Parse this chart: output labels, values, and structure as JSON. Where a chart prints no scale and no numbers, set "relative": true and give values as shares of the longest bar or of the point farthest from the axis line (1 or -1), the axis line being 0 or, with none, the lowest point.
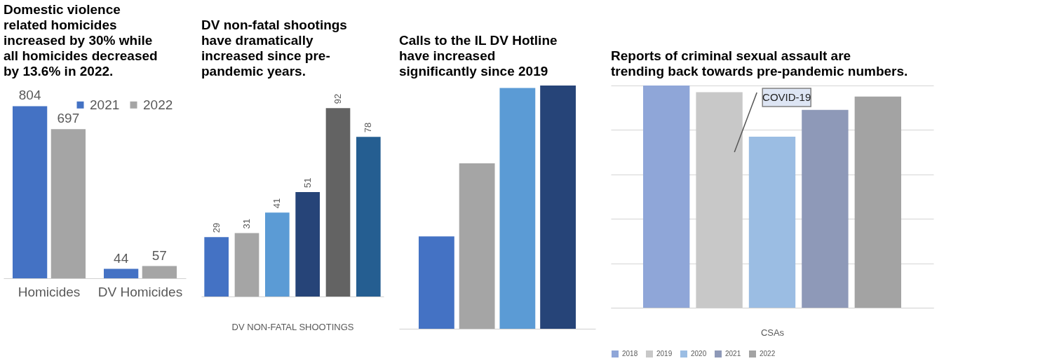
{
  "chart_data": [
    {
      "type": "bar",
      "title": "Domestic violence related homicides increased by 30% while all homicides decreased by 13.6% in 2022.",
      "categories": [
        "Homicides",
        "DV Homicides"
      ],
      "legend": "top right",
      "data_labels": true,
      "series": [
        {
          "name": "2021",
          "color": "#4472c4",
          "values": [
            804,
            44
          ]
        },
        {
          "name": "2022",
          "color": "#a5a5a5",
          "values": [
            697,
            57
          ]
        }
      ]
    },
    {
      "type": "bar",
      "title": "DV non-fatal shootings have dramatically increased since pre-pandemic years.",
      "xlabel": "DV NON-FATAL SHOOTINGS",
      "categories": [
        null,
        null,
        null,
        null,
        null,
        null
      ],
      "data_labels": true,
      "values": [
        29,
        31,
        41,
        51,
        92,
        78
      ],
      "colors": [
        "#4472c4",
        "#a5a5a5",
        "#5b9bd5",
        "#264478",
        "#636363",
        "#255e91"
      ]
    },
    {
      "type": "bar",
      "title": "Calls to the IL DV Hotline have increased significantly since 2019",
      "categories": [
        null
      ],
      "relative": true,
      "series": [
        {
          "color": "#4472c4",
          "values": [
            0.38
          ]
        },
        {
          "color": "#a5a5a5",
          "values": [
            0.68
          ]
        },
        {
          "color": "#5b9bd5",
          "values": [
            0.99
          ]
        },
        {
          "color": "#264478",
          "values": [
            1
          ]
        }
      ]
    },
    {
      "type": "bar",
      "title": "Reports of criminal sexual assault are trending back towards pre-pandemic numbers.",
      "xlabel": "CSAs",
      "categories": [
        null
      ],
      "relative": true,
      "grid": "y",
      "legend": "bottom",
      "annotations": [
        "COVID-19"
      ],
      "series": [
        {
          "name": "2018",
          "color": "#8fa6d8",
          "values": [
            1
          ]
        },
        {
          "name": "2019",
          "color": "#c8c8c8",
          "values": [
            0.97
          ]
        },
        {
          "name": "2020",
          "color": "#9bbde3",
          "values": [
            0.77
          ]
        },
        {
          "name": "2021",
          "color": "#8e99b8",
          "values": [
            0.89
          ]
        },
        {
          "name": "2022",
          "color": "#a3a3a3",
          "values": [
            0.95
          ]
        }
      ]
    }
  ]
}
